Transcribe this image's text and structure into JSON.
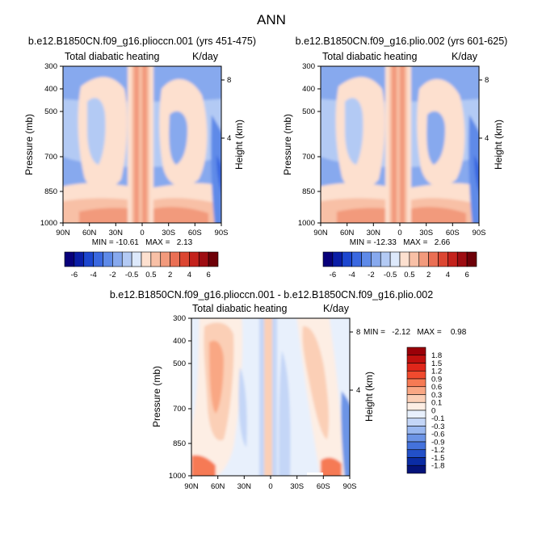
{
  "figure": {
    "title": "ANN",
    "field": "Total diabatic heating",
    "units": "K/day",
    "ylabel": "Pressure (mb)",
    "y2label": "Height (km)"
  },
  "chart_data": [
    {
      "type": "heatmap",
      "title": "b.e12.B1850CN.f09_g16.plioccn.001 (yrs 451-475)",
      "subtitle": "Total diabatic heating",
      "units": "K/day",
      "ylabel": "Pressure (mb)",
      "y2label": "Height (km)",
      "x_ticks": [
        "90N",
        "60N",
        "30N",
        "0",
        "30S",
        "60S",
        "90S"
      ],
      "y_ticks": [
        "300",
        "400",
        "500",
        "700",
        "850",
        "1000"
      ],
      "y2_ticks": [
        "8",
        "4"
      ],
      "stats": "MIN = -10.61   MAX =   2.13",
      "min": -10.61,
      "max": 2.13,
      "colorbar_levels": [
        "-6",
        "-4",
        "-2",
        "-0.5",
        "0.5",
        "2",
        "4",
        "6"
      ],
      "colorbar_orientation": "horizontal"
    },
    {
      "type": "heatmap",
      "title": "b.e12.B1850CN.f09_g16.plio.002 (yrs 601-625)",
      "subtitle": "Total diabatic heating",
      "units": "K/day",
      "ylabel": "Pressure (mb)",
      "y2label": "Height (km)",
      "x_ticks": [
        "90N",
        "60N",
        "30N",
        "0",
        "30S",
        "60S",
        "90S"
      ],
      "y_ticks": [
        "300",
        "400",
        "500",
        "700",
        "850",
        "1000"
      ],
      "y2_ticks": [
        "8",
        "4"
      ],
      "stats": "MIN = -12.33   MAX =   2.66",
      "min": -12.33,
      "max": 2.66,
      "colorbar_levels": [
        "-6",
        "-4",
        "-2",
        "-0.5",
        "0.5",
        "2",
        "4",
        "6"
      ],
      "colorbar_orientation": "horizontal"
    },
    {
      "type": "heatmap",
      "title": "b.e12.B1850CN.f09_g16.plioccn.001 - b.e12.B1850CN.f09_g16.plio.002",
      "subtitle": "Total diabatic heating",
      "units": "K/day",
      "ylabel": "Pressure (mb)",
      "y2label": "Height (km)",
      "x_ticks": [
        "90N",
        "60N",
        "30N",
        "0",
        "30S",
        "60S",
        "90S"
      ],
      "y_ticks": [
        "300",
        "400",
        "500",
        "700",
        "850",
        "1000"
      ],
      "y2_ticks": [
        "8",
        "4"
      ],
      "stats": "MIN =   -2.12   MAX =    0.98",
      "min": -2.12,
      "max": 0.98,
      "colorbar_levels": [
        "1.8",
        "1.5",
        "1.2",
        "0.9",
        "0.6",
        "0.3",
        "0.1",
        "0",
        "-0.1",
        "-0.3",
        "-0.6",
        "-0.9",
        "-1.2",
        "-1.5",
        "-1.8"
      ],
      "colorbar_orientation": "vertical"
    }
  ],
  "palettes": {
    "panel": [
      "#08007a",
      "#0a1da6",
      "#1c46cf",
      "#3a68e0",
      "#5e8ae8",
      "#87a9ee",
      "#b3caf4",
      "#dde9fb",
      "#fde0cf",
      "#f8c0a6",
      "#f29a7c",
      "#ea6f54",
      "#dc4632",
      "#c4221c",
      "#9e0d12",
      "#6e0008"
    ],
    "diff": [
      "#9a0008",
      "#c0100e",
      "#e0261a",
      "#f04a2e",
      "#f67a54",
      "#f9a784",
      "#fbcfb6",
      "#fdeee4",
      "#e8f0fc",
      "#c4d6f7",
      "#9ab8f0",
      "#6c94e6",
      "#4472dc",
      "#2250c8",
      "#0a2ca4",
      "#04137a"
    ]
  }
}
